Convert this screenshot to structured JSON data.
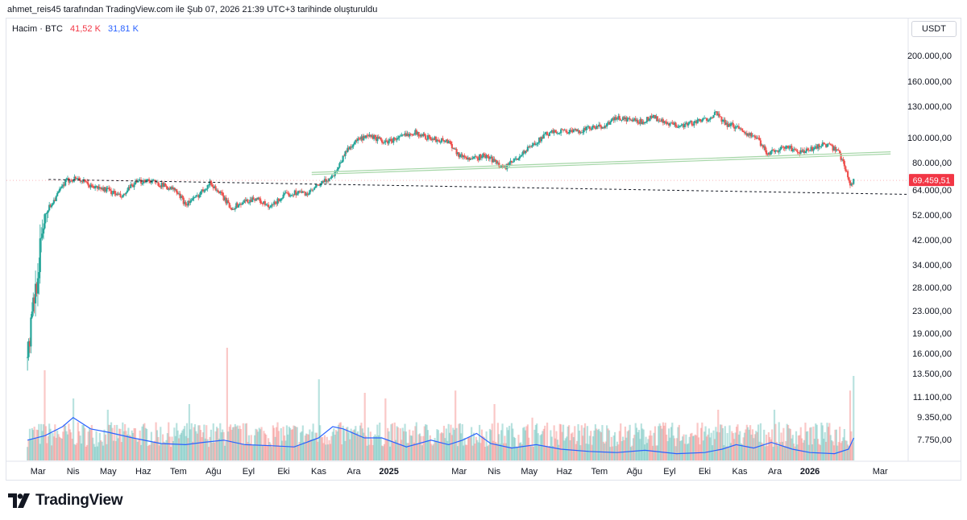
{
  "header": {
    "caption": "ahmet_reis45 tarafından TradingView.com ile Şub 07, 2026 21:39 UTC+3 tarihinde oluşturuldu"
  },
  "legend": {
    "label": "Hacim · BTC",
    "value_red": "41,52 K",
    "value_blue": "31,81 K"
  },
  "price_axis": {
    "unit": "USDT"
  },
  "brand": {
    "logo_text": "TradingView",
    "icon": "tradingview-logo-icon"
  },
  "colors": {
    "up": "#26a69a",
    "down": "#ef5350",
    "ma": "#2962ff",
    "last_price_bg": "#f23645",
    "channel": "#a5d6a7"
  },
  "chart_data": {
    "type": "candlestick",
    "title": "Bitcoin / USDT",
    "scale": "log",
    "ylim": [
      36000,
      260000
    ],
    "y_ticks": [
      "200.000,00",
      "160.000,00",
      "130.000,00",
      "100.000,00",
      "80.000,00",
      "64.000,00",
      "52.000,00",
      "42.000,00",
      "34.000,00",
      "28.000,00",
      "23.000,00",
      "19.000,00",
      "16.000,00",
      "13.500,00",
      "11.100,00",
      "9.350,00",
      "7.750,00"
    ],
    "y_tick_values": [
      200000,
      160000,
      130000,
      100000,
      80000,
      64000,
      52000,
      42000,
      34000,
      28000,
      23000,
      19000,
      16000,
      13500,
      11100,
      9350,
      7750
    ],
    "x_ticks": [
      {
        "label": "Mar",
        "t": 0.3,
        "bold": false
      },
      {
        "label": "Nis",
        "t": 1.3,
        "bold": false
      },
      {
        "label": "May",
        "t": 2.3,
        "bold": false
      },
      {
        "label": "Haz",
        "t": 3.3,
        "bold": false
      },
      {
        "label": "Tem",
        "t": 4.3,
        "bold": false
      },
      {
        "label": "Ağu",
        "t": 5.3,
        "bold": false
      },
      {
        "label": "Eyl",
        "t": 6.3,
        "bold": false
      },
      {
        "label": "Eki",
        "t": 7.3,
        "bold": false
      },
      {
        "label": "Kas",
        "t": 8.3,
        "bold": false
      },
      {
        "label": "Ara",
        "t": 9.3,
        "bold": false
      },
      {
        "label": "2025",
        "t": 10.3,
        "bold": true
      },
      {
        "label": "Mar",
        "t": 12.3,
        "bold": false
      },
      {
        "label": "Nis",
        "t": 13.3,
        "bold": false
      },
      {
        "label": "May",
        "t": 14.3,
        "bold": false
      },
      {
        "label": "Haz",
        "t": 15.3,
        "bold": false
      },
      {
        "label": "Tem",
        "t": 16.3,
        "bold": false
      },
      {
        "label": "Ağu",
        "t": 17.3,
        "bold": false
      },
      {
        "label": "Eyl",
        "t": 18.3,
        "bold": false
      },
      {
        "label": "Eki",
        "t": 19.3,
        "bold": false
      },
      {
        "label": "Kas",
        "t": 20.3,
        "bold": false
      },
      {
        "label": "Ara",
        "t": 21.3,
        "bold": false
      },
      {
        "label": "2026",
        "t": 22.3,
        "bold": true
      },
      {
        "label": "Mar",
        "t": 24.3,
        "bold": false
      }
    ],
    "t_range": [
      -0.6,
      25.1
    ],
    "price_path": [
      [
        0,
        42000
      ],
      [
        0.4,
        50000
      ],
      [
        0.8,
        60000
      ],
      [
        1.1,
        69000
      ],
      [
        1.4,
        71000
      ],
      [
        1.8,
        66000
      ],
      [
        2.3,
        64000
      ],
      [
        2.7,
        60000
      ],
      [
        3.0,
        67000
      ],
      [
        3.4,
        70000
      ],
      [
        3.8,
        67000
      ],
      [
        4.2,
        64000
      ],
      [
        4.5,
        57000
      ],
      [
        4.8,
        60000
      ],
      [
        5.2,
        68000
      ],
      [
        5.5,
        62000
      ],
      [
        5.8,
        55000
      ],
      [
        6.2,
        58000
      ],
      [
        6.5,
        60000
      ],
      [
        6.9,
        55000
      ],
      [
        7.3,
        61000
      ],
      [
        7.7,
        63000
      ],
      [
        8.0,
        62000
      ],
      [
        8.4,
        68000
      ],
      [
        8.7,
        72000
      ],
      [
        8.9,
        80000
      ],
      [
        9.1,
        90000
      ],
      [
        9.4,
        98000
      ],
      [
        9.8,
        101000
      ],
      [
        10.2,
        96000
      ],
      [
        10.6,
        100000
      ],
      [
        11.0,
        105000
      ],
      [
        11.5,
        99000
      ],
      [
        12.0,
        97000
      ],
      [
        12.3,
        86000
      ],
      [
        12.7,
        83000
      ],
      [
        13.0,
        86000
      ],
      [
        13.3,
        82000
      ],
      [
        13.6,
        77000
      ],
      [
        14.0,
        85000
      ],
      [
        14.4,
        94000
      ],
      [
        14.8,
        103000
      ],
      [
        15.2,
        106000
      ],
      [
        15.6,
        105000
      ],
      [
        16.0,
        108000
      ],
      [
        16.4,
        110000
      ],
      [
        16.8,
        118000
      ],
      [
        17.2,
        116000
      ],
      [
        17.5,
        114000
      ],
      [
        17.8,
        120000
      ],
      [
        18.2,
        112000
      ],
      [
        18.6,
        111000
      ],
      [
        18.9,
        113000
      ],
      [
        19.2,
        115000
      ],
      [
        19.4,
        118000
      ],
      [
        19.6,
        123000
      ],
      [
        19.9,
        112000
      ],
      [
        20.2,
        110000
      ],
      [
        20.5,
        104000
      ],
      [
        20.8,
        99000
      ],
      [
        21.1,
        87000
      ],
      [
        21.3,
        90000
      ],
      [
        21.7,
        92000
      ],
      [
        22.0,
        88000
      ],
      [
        22.3,
        90000
      ],
      [
        22.7,
        95000
      ],
      [
        22.9,
        92000
      ],
      [
        23.1,
        89000
      ],
      [
        23.3,
        78000
      ],
      [
        23.45,
        67000
      ],
      [
        23.55,
        69459
      ]
    ],
    "last_price": {
      "value": 69459.51,
      "label": "69.459,51"
    },
    "trendline_dashed": {
      "from": [
        0.6,
        70000
      ],
      "to": [
        25.1,
        61700
      ]
    },
    "channel_lines": [
      {
        "from": [
          8.1,
          73000
        ],
        "to": [
          24.6,
          87000
        ]
      },
      {
        "from": [
          8.1,
          74300
        ],
        "to": [
          24.6,
          88600
        ]
      }
    ],
    "volume": {
      "label": "Hacim",
      "peaks": [
        [
          0.5,
          0.8
        ],
        [
          1.3,
          0.55
        ],
        [
          2.3,
          0.45
        ],
        [
          4.6,
          0.5
        ],
        [
          5.7,
          1.0
        ],
        [
          8.3,
          0.72
        ],
        [
          9.6,
          0.6
        ],
        [
          10.2,
          0.55
        ],
        [
          12.2,
          0.62
        ],
        [
          13.3,
          0.5
        ],
        [
          14.4,
          0.38
        ],
        [
          19.7,
          0.45
        ],
        [
          21.3,
          0.45
        ],
        [
          23.45,
          0.62
        ],
        [
          23.55,
          0.75
        ]
      ],
      "ma_path": [
        [
          0,
          0.18
        ],
        [
          0.5,
          0.22
        ],
        [
          1.0,
          0.3
        ],
        [
          1.3,
          0.38
        ],
        [
          1.8,
          0.28
        ],
        [
          2.3,
          0.25
        ],
        [
          3.0,
          0.2
        ],
        [
          3.8,
          0.15
        ],
        [
          4.5,
          0.14
        ],
        [
          5.0,
          0.16
        ],
        [
          5.6,
          0.18
        ],
        [
          6.2,
          0.14
        ],
        [
          7.0,
          0.13
        ],
        [
          7.6,
          0.12
        ],
        [
          8.3,
          0.2
        ],
        [
          8.7,
          0.3
        ],
        [
          9.0,
          0.28
        ],
        [
          9.6,
          0.2
        ],
        [
          10.1,
          0.2
        ],
        [
          10.8,
          0.12
        ],
        [
          11.5,
          0.18
        ],
        [
          12.0,
          0.14
        ],
        [
          12.4,
          0.18
        ],
        [
          12.8,
          0.24
        ],
        [
          13.2,
          0.15
        ],
        [
          13.8,
          0.11
        ],
        [
          14.5,
          0.14
        ],
        [
          15.2,
          0.1
        ],
        [
          16.0,
          0.08
        ],
        [
          16.8,
          0.07
        ],
        [
          17.6,
          0.09
        ],
        [
          18.5,
          0.06
        ],
        [
          19.3,
          0.07
        ],
        [
          19.8,
          0.1
        ],
        [
          20.2,
          0.14
        ],
        [
          20.7,
          0.11
        ],
        [
          21.2,
          0.16
        ],
        [
          21.8,
          0.1
        ],
        [
          22.3,
          0.07
        ],
        [
          23.0,
          0.06
        ],
        [
          23.4,
          0.1
        ],
        [
          23.55,
          0.2
        ]
      ]
    }
  }
}
